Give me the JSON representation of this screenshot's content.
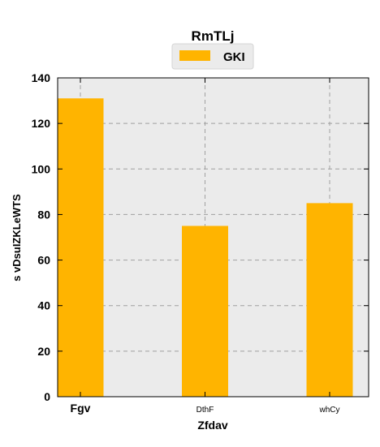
{
  "chart_data": {
    "type": "bar",
    "title": "RmTLj",
    "xlabel": "Zfdav",
    "ylabel": "s vDsuIZKLeWTS",
    "categories": [
      "Fgv",
      "DthF",
      "whCy"
    ],
    "series": [
      {
        "name": "GKI",
        "values": [
          131,
          75,
          85
        ],
        "color": "#FFB400"
      }
    ],
    "ylim": [
      0,
      140
    ],
    "yticks": [
      0,
      20,
      40,
      60,
      80,
      100,
      120,
      140
    ],
    "grid": true,
    "legend_position": "top-center",
    "colors": {
      "plot_background": "#EBEBEB",
      "grid": "#A0A0A0",
      "bar": "#FFB400"
    }
  }
}
